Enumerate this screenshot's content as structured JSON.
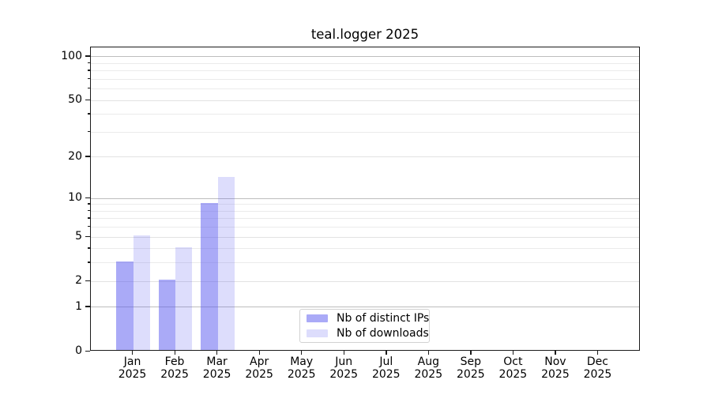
{
  "title": "teal.logger 2025",
  "chart_data": {
    "type": "bar",
    "title": "teal.logger 2025",
    "y_scale": "log1p",
    "categories": [
      "Jan",
      "Feb",
      "Mar",
      "Apr",
      "May",
      "Jun",
      "Jul",
      "Aug",
      "Sep",
      "Oct",
      "Nov",
      "Dec"
    ],
    "year_label": "2025",
    "series": [
      {
        "name": "Nb of distinct IPs",
        "color": "rgba(85,85,240,0.50)",
        "values": [
          3,
          2,
          9,
          0,
          0,
          0,
          0,
          0,
          0,
          0,
          0,
          0
        ]
      },
      {
        "name": "Nb of downloads",
        "color": "rgba(85,85,240,0.20)",
        "values": [
          5,
          4,
          14,
          0,
          0,
          0,
          0,
          0,
          0,
          0,
          0,
          0
        ]
      }
    ],
    "y_tick_values": [
      0,
      1,
      2,
      5,
      10,
      20,
      50,
      100
    ],
    "y_tick_labels": [
      "0",
      "1",
      "2",
      "5",
      "10",
      "20",
      "50",
      "100"
    ],
    "y_gridlines_major": [
      1,
      10,
      100
    ],
    "y_gridlines_mid": [
      2,
      5,
      20,
      50
    ],
    "y_gridlines_minor": [
      3,
      4,
      6,
      7,
      8,
      9,
      30,
      40,
      60,
      70,
      80,
      90
    ],
    "ylim": [
      0,
      116
    ],
    "grid": true,
    "legend_position": "lower-center"
  },
  "legend": {
    "items": [
      "Nb of distinct IPs",
      "Nb of downloads"
    ]
  },
  "colors": {
    "bar_distinct_ips": "rgba(85,85,240,0.50)",
    "bar_downloads": "rgba(85,85,240,0.20)",
    "grid_major": "#bdbdbd",
    "grid_minor": "#ebebeb",
    "spine": "#1a1a1a",
    "background": "#ffffff"
  }
}
